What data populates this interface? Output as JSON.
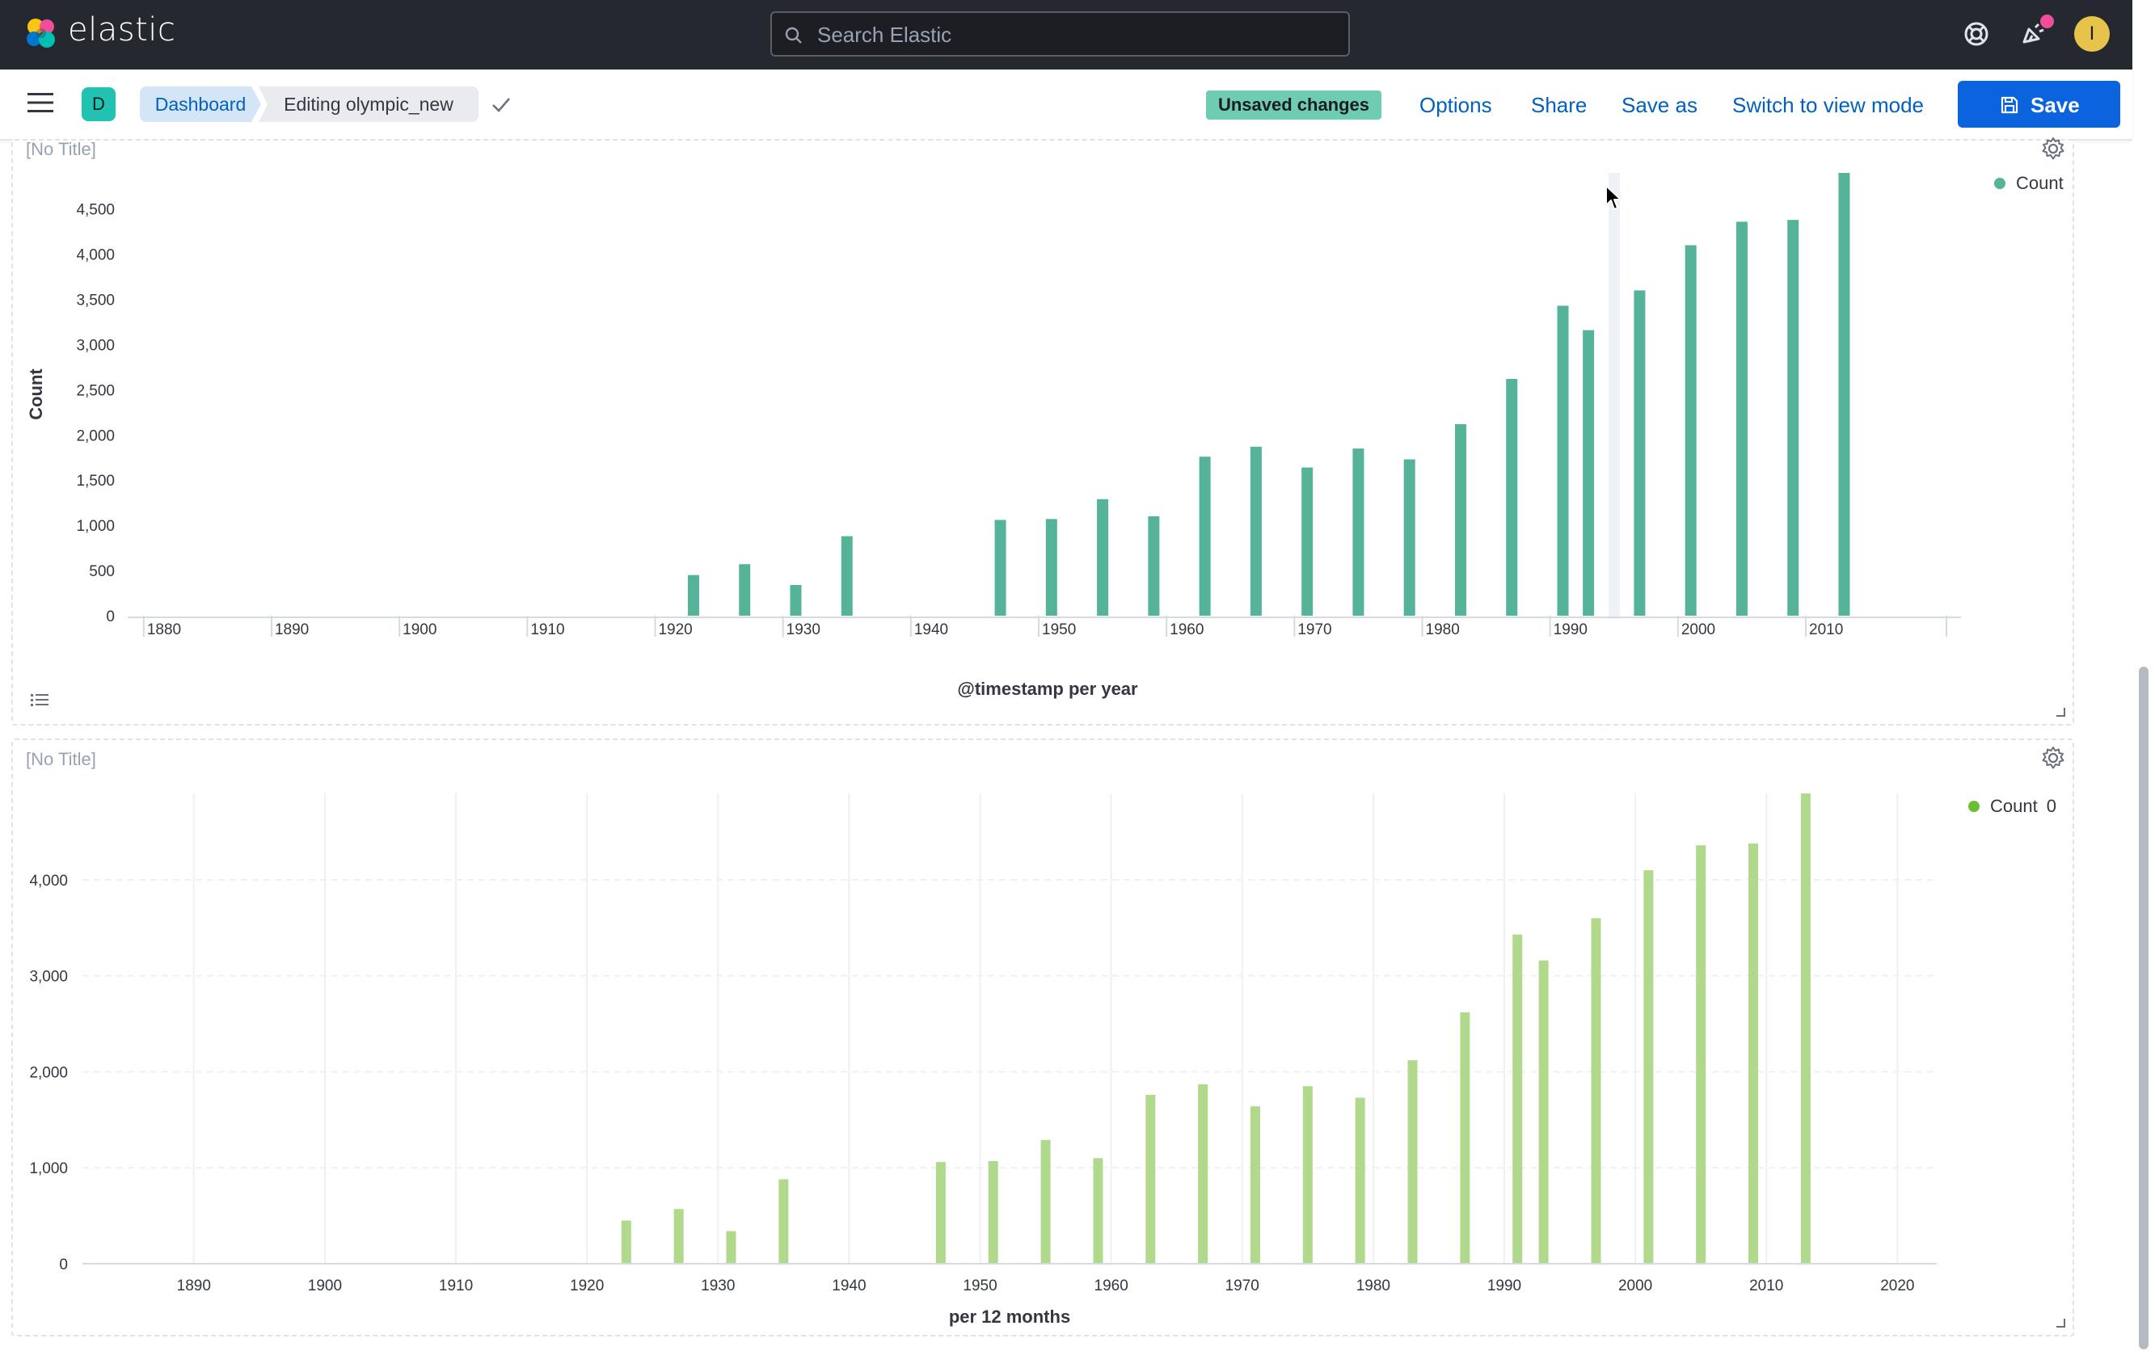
{
  "header": {
    "brand": "elastic",
    "search_placeholder": "Search Elastic",
    "icons": [
      "help-icon",
      "newsfeed-icon"
    ],
    "avatar_initial": "I"
  },
  "toolbar": {
    "space_initial": "D",
    "breadcrumbs": [
      "Dashboard",
      "Editing olympic_new"
    ],
    "unsaved_badge": "Unsaved changes",
    "options": "Options",
    "share": "Share",
    "save_as": "Save as",
    "switch_view": "Switch to view mode",
    "save": "Save"
  },
  "colors": {
    "header_bg": "#25282f",
    "accent": "#0b64dd",
    "unsaved_badge": "#6dccb1",
    "chart1_bar": "#54b399",
    "chart2_bar": "#b0d98b"
  },
  "panels": [
    {
      "title": "[No Title]",
      "legend_label": "Count",
      "ylabel": "Count",
      "xlabel": "@timestamp per year"
    },
    {
      "title": "[No Title]",
      "legend_label": "Count",
      "legend_value": "0",
      "xlabel": "per 12 months"
    }
  ],
  "chart_data": [
    {
      "type": "bar",
      "title": "",
      "xlabel": "@timestamp per year",
      "ylabel": "Count",
      "x": [
        1923,
        1927,
        1931,
        1935,
        1947,
        1951,
        1955,
        1959,
        1963,
        1967,
        1971,
        1975,
        1979,
        1983,
        1987,
        1991,
        1993,
        1997,
        2001,
        2005,
        2009,
        2013
      ],
      "series": [
        {
          "name": "Count",
          "values": [
            450,
            570,
            340,
            880,
            1060,
            1070,
            1290,
            1100,
            1760,
            1870,
            1640,
            1850,
            1730,
            2120,
            2620,
            3430,
            3160,
            3600,
            4100,
            4360,
            4380,
            4900
          ]
        }
      ],
      "xlim": [
        1879,
        2021
      ],
      "ylim": [
        0,
        4900
      ],
      "x_ticks": [
        1880,
        1890,
        1900,
        1910,
        1920,
        1930,
        1940,
        1950,
        1960,
        1970,
        1980,
        1990,
        2000,
        2010
      ],
      "y_ticks": [
        0,
        500,
        1000,
        1500,
        2000,
        2500,
        3000,
        3500,
        4000,
        4500
      ],
      "y_tick_labels": [
        "0",
        "500",
        "1,000",
        "1,500",
        "2,000",
        "2,500",
        "3,000",
        "3,500",
        "4,000",
        "4,500"
      ],
      "grid": false,
      "legend": "top-right"
    },
    {
      "type": "bar",
      "title": "",
      "xlabel": "per 12 months",
      "ylabel": "",
      "x": [
        1923,
        1927,
        1931,
        1935,
        1947,
        1951,
        1955,
        1959,
        1963,
        1967,
        1971,
        1975,
        1979,
        1983,
        1987,
        1991,
        1993,
        1997,
        2001,
        2005,
        2009,
        2013
      ],
      "series": [
        {
          "name": "Count",
          "values": [
            450,
            570,
            340,
            880,
            1060,
            1070,
            1290,
            1100,
            1760,
            1870,
            1640,
            1850,
            1730,
            2120,
            2620,
            3430,
            3160,
            3600,
            4100,
            4360,
            4380,
            4900
          ]
        }
      ],
      "xlim": [
        1881.5,
        2023
      ],
      "ylim": [
        0,
        4900
      ],
      "x_ticks": [
        1890,
        1900,
        1910,
        1920,
        1930,
        1940,
        1950,
        1960,
        1970,
        1980,
        1990,
        2000,
        2010,
        2020
      ],
      "y_ticks": [
        0,
        1000,
        2000,
        3000,
        4000
      ],
      "y_tick_labels": [
        "0",
        "1,000",
        "2,000",
        "3,000",
        "4,000"
      ],
      "grid": true,
      "legend": "top-right"
    }
  ]
}
